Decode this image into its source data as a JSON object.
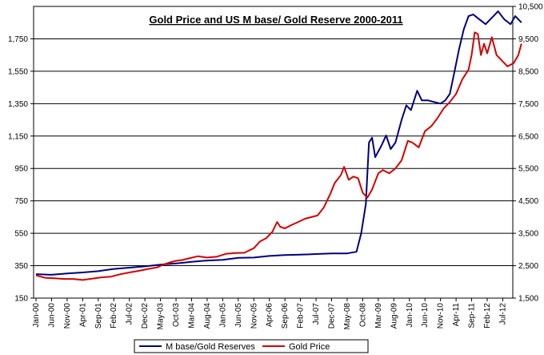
{
  "chart_data": {
    "type": "line",
    "title": "Gold Price and US M base/ Gold Reserve 2000-2011",
    "x_tick_labels": [
      "Jan-00",
      "Jun-00",
      "Nov-00",
      "Apr-01",
      "Sep-01",
      "Feb-02",
      "Jul-02",
      "Dec-02",
      "May-03",
      "Oct-03",
      "Mar-04",
      "Aug-04",
      "Jan-05",
      "Jun-05",
      "Nov-05",
      "Apr-06",
      "Sep-06",
      "Feb-07",
      "Jul-07",
      "Dec-07",
      "May-08",
      "Oct-08",
      "Mar-09",
      "Aug-09",
      "Jan-10",
      "Jun-10",
      "Nov-10",
      "Apr-11",
      "Sep-11",
      "Feb-12",
      "Jul-12"
    ],
    "y_left": {
      "ylim": [
        150,
        1950
      ],
      "ticks": [
        150,
        350,
        550,
        750,
        950,
        1150,
        1350,
        1550,
        1750
      ],
      "tick_labels": [
        "150",
        "350",
        "550",
        "750",
        "950",
        "1,150",
        "1,350",
        "1,550",
        "1,750"
      ]
    },
    "y_right": {
      "ylim": [
        1500,
        10500
      ],
      "ticks": [
        1500,
        2500,
        3500,
        4500,
        5500,
        6500,
        7500,
        8500,
        9500,
        10500
      ],
      "tick_labels": [
        "1,500",
        "2,500",
        "3,500",
        "4,500",
        "5,500",
        "6,500",
        "7,500",
        "8,500",
        "9,500",
        "10,500"
      ]
    },
    "series": [
      {
        "name": "M base/Gold Reserves",
        "axis": "right",
        "color": "#00007f",
        "points": [
          [
            0,
            2240
          ],
          [
            1,
            2220
          ],
          [
            2,
            2260
          ],
          [
            3,
            2290
          ],
          [
            4,
            2330
          ],
          [
            5,
            2400
          ],
          [
            6,
            2440
          ],
          [
            7,
            2480
          ],
          [
            8,
            2530
          ],
          [
            9,
            2570
          ],
          [
            10,
            2620
          ],
          [
            11,
            2660
          ],
          [
            12,
            2680
          ],
          [
            13,
            2740
          ],
          [
            14,
            2750
          ],
          [
            15,
            2800
          ],
          [
            16,
            2830
          ],
          [
            17,
            2840
          ],
          [
            18,
            2860
          ],
          [
            19,
            2880
          ],
          [
            20,
            2880
          ],
          [
            20.6,
            2930
          ],
          [
            20.9,
            3500
          ],
          [
            21.2,
            4400
          ],
          [
            21.4,
            6300
          ],
          [
            21.6,
            6450
          ],
          [
            21.8,
            5850
          ],
          [
            22.2,
            6200
          ],
          [
            22.5,
            6520
          ],
          [
            22.8,
            6100
          ],
          [
            23.1,
            6300
          ],
          [
            23.5,
            7000
          ],
          [
            23.8,
            7450
          ],
          [
            24.1,
            7300
          ],
          [
            24.5,
            7900
          ],
          [
            24.8,
            7600
          ],
          [
            25.2,
            7600
          ],
          [
            25.6,
            7550
          ],
          [
            26.0,
            7500
          ],
          [
            26.3,
            7600
          ],
          [
            26.6,
            7800
          ],
          [
            26.9,
            8500
          ],
          [
            27.2,
            9200
          ],
          [
            27.5,
            9800
          ],
          [
            27.8,
            10200
          ],
          [
            28.1,
            10250
          ],
          [
            28.5,
            10100
          ],
          [
            28.9,
            9950
          ],
          [
            29.3,
            10150
          ],
          [
            29.7,
            10350
          ],
          [
            30.1,
            10100
          ],
          [
            30.5,
            9950
          ],
          [
            30.8,
            10200
          ],
          [
            31.2,
            10000
          ]
        ]
      },
      {
        "name": "Gold Price",
        "axis": "left",
        "color": "#d40000",
        "points": [
          [
            0,
            290
          ],
          [
            0.6,
            275
          ],
          [
            1.2,
            272
          ],
          [
            1.8,
            268
          ],
          [
            2.4,
            268
          ],
          [
            3.0,
            262
          ],
          [
            3.6,
            270
          ],
          [
            4.2,
            278
          ],
          [
            4.8,
            282
          ],
          [
            5.4,
            297
          ],
          [
            6.0,
            308
          ],
          [
            6.6,
            318
          ],
          [
            7.2,
            330
          ],
          [
            7.8,
            340
          ],
          [
            8.2,
            357
          ],
          [
            8.6,
            370
          ],
          [
            9.0,
            380
          ],
          [
            9.4,
            385
          ],
          [
            9.8,
            395
          ],
          [
            10.4,
            408
          ],
          [
            11.0,
            400
          ],
          [
            11.6,
            405
          ],
          [
            12.2,
            423
          ],
          [
            12.8,
            428
          ],
          [
            13.4,
            430
          ],
          [
            14.0,
            458
          ],
          [
            14.4,
            500
          ],
          [
            14.8,
            520
          ],
          [
            15.2,
            560
          ],
          [
            15.5,
            620
          ],
          [
            15.7,
            590
          ],
          [
            16.0,
            580
          ],
          [
            16.4,
            600
          ],
          [
            16.9,
            622
          ],
          [
            17.3,
            640
          ],
          [
            17.7,
            650
          ],
          [
            18.1,
            660
          ],
          [
            18.5,
            710
          ],
          [
            18.9,
            790
          ],
          [
            19.2,
            860
          ],
          [
            19.6,
            910
          ],
          [
            19.8,
            960
          ],
          [
            20.1,
            880
          ],
          [
            20.4,
            900
          ],
          [
            20.7,
            890
          ],
          [
            21.0,
            800
          ],
          [
            21.3,
            770
          ],
          [
            21.6,
            820
          ],
          [
            22.0,
            920
          ],
          [
            22.3,
            940
          ],
          [
            22.7,
            920
          ],
          [
            23.1,
            950
          ],
          [
            23.5,
            1000
          ],
          [
            23.9,
            1120
          ],
          [
            24.2,
            1110
          ],
          [
            24.6,
            1080
          ],
          [
            25.0,
            1180
          ],
          [
            25.4,
            1210
          ],
          [
            25.8,
            1260
          ],
          [
            26.2,
            1320
          ],
          [
            26.6,
            1360
          ],
          [
            27.0,
            1410
          ],
          [
            27.4,
            1500
          ],
          [
            27.8,
            1560
          ],
          [
            28.0,
            1650
          ],
          [
            28.2,
            1790
          ],
          [
            28.4,
            1780
          ],
          [
            28.6,
            1650
          ],
          [
            28.8,
            1720
          ],
          [
            29.0,
            1660
          ],
          [
            29.3,
            1760
          ],
          [
            29.6,
            1650
          ],
          [
            29.9,
            1620
          ],
          [
            30.3,
            1580
          ],
          [
            30.7,
            1600
          ],
          [
            31.0,
            1650
          ],
          [
            31.2,
            1720
          ]
        ]
      }
    ],
    "legend": [
      "M base/Gold Reserves",
      "Gold Price"
    ]
  }
}
